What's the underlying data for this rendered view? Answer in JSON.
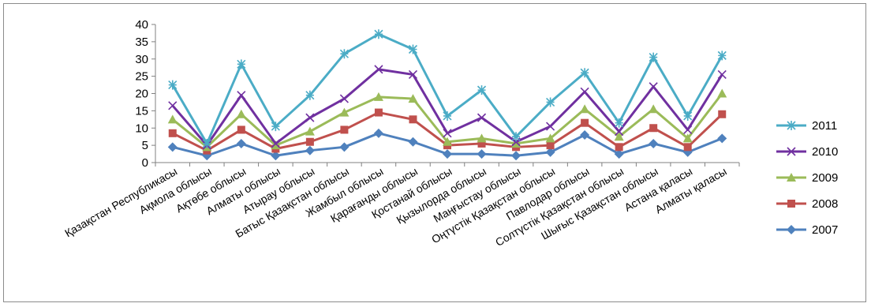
{
  "chart_data": {
    "type": "line",
    "categories": [
      "Қазақстан Республикасы",
      "Ақмола облысы",
      "Ақтөбе облысы",
      "Алматы облысы",
      "Атырау облысы",
      "Батыс Қазақстан облысы",
      "Жамбыл облысы",
      "Қарағанды облысы",
      "Қостанай облысы",
      "Қызылорда облысы",
      "Маңғыстау облысы",
      "Оңтүстік Қазақстан облысы",
      "Павлодар облысы",
      "Солтүстік Қазақстан облысы",
      "Шығыс Қазақстан облысы",
      "Астана қаласы",
      "Алматы қаласы"
    ],
    "ylim": [
      0,
      40
    ],
    "yticks": [
      "0",
      "5",
      "10",
      "15",
      "20",
      "25",
      "30",
      "35",
      "40"
    ],
    "legend_position": "right",
    "series": [
      {
        "name": "2011",
        "color": "#4bacc6",
        "marker": "asterisk",
        "values": [
          22.5,
          5.5,
          28.5,
          10.5,
          19.5,
          31.5,
          37.2,
          32.8,
          13.5,
          21,
          7.5,
          17.5,
          26,
          11.5,
          30.5,
          13.5,
          31
        ]
      },
      {
        "name": "2010",
        "color": "#7030a0",
        "marker": "x",
        "values": [
          16.5,
          5,
          19.5,
          5.5,
          13,
          18.5,
          27,
          25.5,
          8.5,
          13,
          6,
          10.5,
          20.5,
          9,
          22,
          9.5,
          25.5
        ]
      },
      {
        "name": "2009",
        "color": "#9bbb59",
        "marker": "triangle",
        "values": [
          12.5,
          4.5,
          14,
          5,
          9,
          14.5,
          19,
          18.5,
          6,
          7,
          5.5,
          7,
          15.5,
          7.5,
          15.5,
          7,
          20
        ]
      },
      {
        "name": "2008",
        "color": "#c0504d",
        "marker": "square",
        "values": [
          8.5,
          3.5,
          9.5,
          4,
          6,
          9.5,
          14.5,
          12.5,
          5,
          5.5,
          4.5,
          5,
          11.5,
          4.5,
          10,
          4.5,
          14
        ]
      },
      {
        "name": "2007",
        "color": "#4f81bd",
        "marker": "diamond",
        "values": [
          4.5,
          2,
          5.5,
          2,
          3.5,
          4.5,
          8.5,
          6,
          2.5,
          2.5,
          2,
          3,
          8,
          2.5,
          5.5,
          3,
          7
        ]
      }
    ]
  }
}
